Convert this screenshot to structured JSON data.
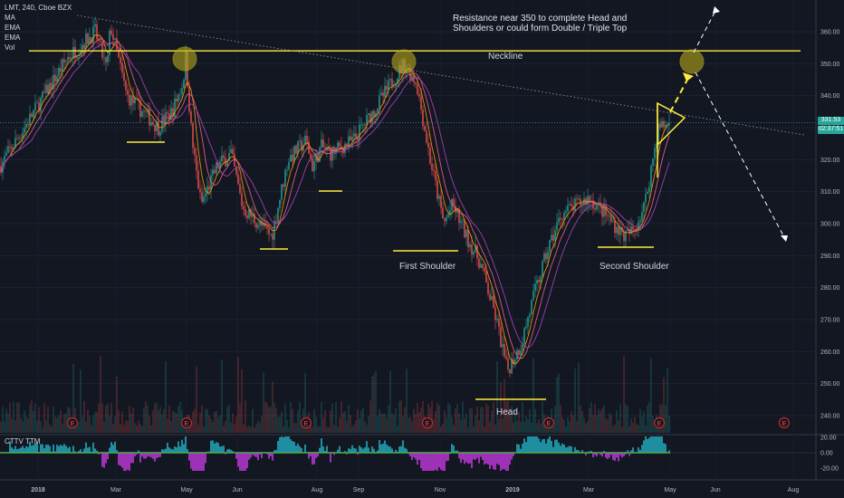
{
  "header": {
    "symbol_line": "LMT, 240, Cboe BZX",
    "indicators": [
      "MA",
      "EMA",
      "EMA",
      "Vol"
    ]
  },
  "annotations": {
    "note": "Resistance near 350 to complete Head and Shoulders or could form Double / Triple Top",
    "neckline": "Neckline",
    "first_shoulder": "First Shoulder",
    "head": "Head",
    "second_shoulder": "Second Shoulder"
  },
  "oscillator": {
    "label": "CTTV TTM",
    "ticks": [
      "20.00",
      "0.00",
      "-20.00"
    ]
  },
  "price_badges": {
    "last_price": "331.53",
    "countdown": "02:37:51"
  },
  "colors": {
    "background": "#131722",
    "up": "#26a69a",
    "down": "#ef5350",
    "annotation": "#ffeb3b",
    "earnings": "#c62828"
  },
  "chart_data": {
    "type": "candlestick",
    "y_axis_ticks": [
      240,
      250,
      260,
      270,
      280,
      290,
      300,
      310,
      320,
      330,
      340,
      350,
      360
    ],
    "ylim": [
      235,
      368
    ],
    "x_axis_ticks": [
      "2018",
      "Mar",
      "May",
      "Jun",
      "Aug",
      "Sep",
      "Nov",
      "2019",
      "Mar",
      "May",
      "Jun",
      "Aug"
    ],
    "neckline_level": 354,
    "last_price": 331.53,
    "trendline": {
      "from": [
        "2018-01",
        366
      ],
      "to": [
        "2019-08",
        328
      ]
    },
    "price_path": [
      [
        "2017-12",
        318
      ],
      [
        "2018-01",
        327
      ],
      [
        "2018-01",
        352
      ],
      [
        "2018-02",
        360
      ],
      [
        "2018-02",
        348
      ],
      [
        "2018-02",
        362
      ],
      [
        "2018-03",
        340
      ],
      [
        "2018-03",
        330
      ],
      [
        "2018-03",
        326
      ],
      [
        "2018-04",
        335
      ],
      [
        "2018-04",
        344
      ],
      [
        "2018-04",
        352
      ],
      [
        "2018-05",
        326
      ],
      [
        "2018-05",
        306
      ],
      [
        "2018-05",
        318
      ],
      [
        "2018-06",
        322
      ],
      [
        "2018-06",
        305
      ],
      [
        "2018-06",
        296
      ],
      [
        "2018-07",
        320
      ],
      [
        "2018-07",
        326
      ],
      [
        "2018-07",
        318
      ],
      [
        "2018-08",
        324
      ],
      [
        "2018-08",
        322
      ],
      [
        "2018-08",
        326
      ],
      [
        "2018-09",
        335
      ],
      [
        "2018-09",
        350
      ],
      [
        "2018-10",
        344
      ],
      [
        "2018-10",
        320
      ],
      [
        "2018-10",
        300
      ],
      [
        "2018-11",
        306
      ],
      [
        "2018-11",
        296
      ],
      [
        "2018-11",
        288
      ],
      [
        "2018-12",
        270
      ],
      [
        "2018-12",
        254
      ],
      [
        "2018-12",
        262
      ],
      [
        "2019-01",
        278
      ],
      [
        "2019-01",
        292
      ],
      [
        "2019-02",
        303
      ],
      [
        "2019-02",
        308
      ],
      [
        "2019-03",
        304
      ],
      [
        "2019-03",
        296
      ],
      [
        "2019-04",
        298
      ],
      [
        "2019-04",
        306
      ],
      [
        "2019-04",
        330
      ],
      [
        "2019-05",
        331.53
      ]
    ]
  }
}
